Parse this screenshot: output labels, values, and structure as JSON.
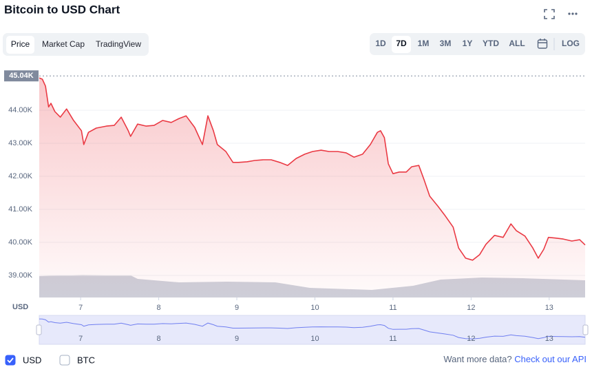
{
  "header": {
    "title": "Bitcoin to USD Chart"
  },
  "tabs": [
    "Price",
    "Market Cap",
    "TradingView"
  ],
  "active_tab": 0,
  "ranges": [
    "1D",
    "7D",
    "1M",
    "3M",
    "1Y",
    "YTD",
    "ALL"
  ],
  "active_range": 1,
  "log_button": "LOG",
  "chart_data": {
    "type": "line",
    "y_unit": "USD",
    "color": "#ea3943",
    "x": [
      6.47,
      6.51,
      6.55,
      6.59,
      6.62,
      6.67,
      6.74,
      6.82,
      6.91,
      7.01,
      7.04,
      7.1,
      7.2,
      7.33,
      7.43,
      7.52,
      7.61,
      7.64,
      7.73,
      7.84,
      7.94,
      8.05,
      8.16,
      8.26,
      8.35,
      8.46,
      8.56,
      8.63,
      8.7,
      8.75,
      8.86,
      8.95,
      9.02,
      9.13,
      9.23,
      9.34,
      9.44,
      9.55,
      9.65,
      9.76,
      9.87,
      9.97,
      10.08,
      10.18,
      10.29,
      10.4,
      10.5,
      10.61,
      10.71,
      10.8,
      10.84,
      10.89,
      10.94,
      11.0,
      11.08,
      11.17,
      11.24,
      11.33,
      11.4,
      11.47,
      11.58,
      11.66,
      11.77,
      11.84,
      11.93,
      12.02,
      12.11,
      12.19,
      12.3,
      12.41,
      12.51,
      12.58,
      12.69,
      12.79,
      12.86,
      12.93,
      12.99,
      13.08,
      13.18,
      13.29,
      13.39,
      13.46
    ],
    "values": [
      44980,
      44940,
      44730,
      44100,
      44210,
      43960,
      43790,
      44040,
      43690,
      43380,
      42960,
      43330,
      43460,
      43520,
      43540,
      43790,
      43380,
      43210,
      43580,
      43520,
      43540,
      43690,
      43630,
      43750,
      43830,
      43480,
      42960,
      43830,
      43380,
      42960,
      42750,
      42420,
      42420,
      42440,
      42480,
      42500,
      42500,
      42420,
      42330,
      42540,
      42670,
      42750,
      42790,
      42750,
      42750,
      42710,
      42580,
      42670,
      42960,
      43330,
      43380,
      43170,
      42380,
      42080,
      42130,
      42130,
      42290,
      42330,
      41880,
      41400,
      41080,
      40830,
      40460,
      39830,
      39520,
      39460,
      39630,
      39940,
      40210,
      40150,
      40560,
      40350,
      40190,
      39830,
      39520,
      39790,
      40150,
      40130,
      40100,
      40040,
      40080,
      39920
    ],
    "xlim": [
      6.47,
      13.46
    ],
    "xticks": [
      7,
      8,
      9,
      10,
      11,
      12,
      13
    ],
    "ylim": [
      38330,
      45190
    ],
    "yticks": [
      {
        "value": 39000,
        "label": "39.00K"
      },
      {
        "value": 40000,
        "label": "40.00K"
      },
      {
        "value": 41000,
        "label": "41.00K"
      },
      {
        "value": 42000,
        "label": "42.00K"
      },
      {
        "value": 43000,
        "label": "43.00K"
      },
      {
        "value": 44000,
        "label": "44.00K"
      }
    ],
    "price_marker": {
      "value": 45040,
      "label": "45.04K"
    },
    "grid": true
  },
  "footer": {
    "currencies": [
      {
        "label": "USD",
        "checked": true
      },
      {
        "label": "BTC",
        "checked": false
      }
    ],
    "prompt": "Want more data?",
    "link": "Check out our API"
  }
}
